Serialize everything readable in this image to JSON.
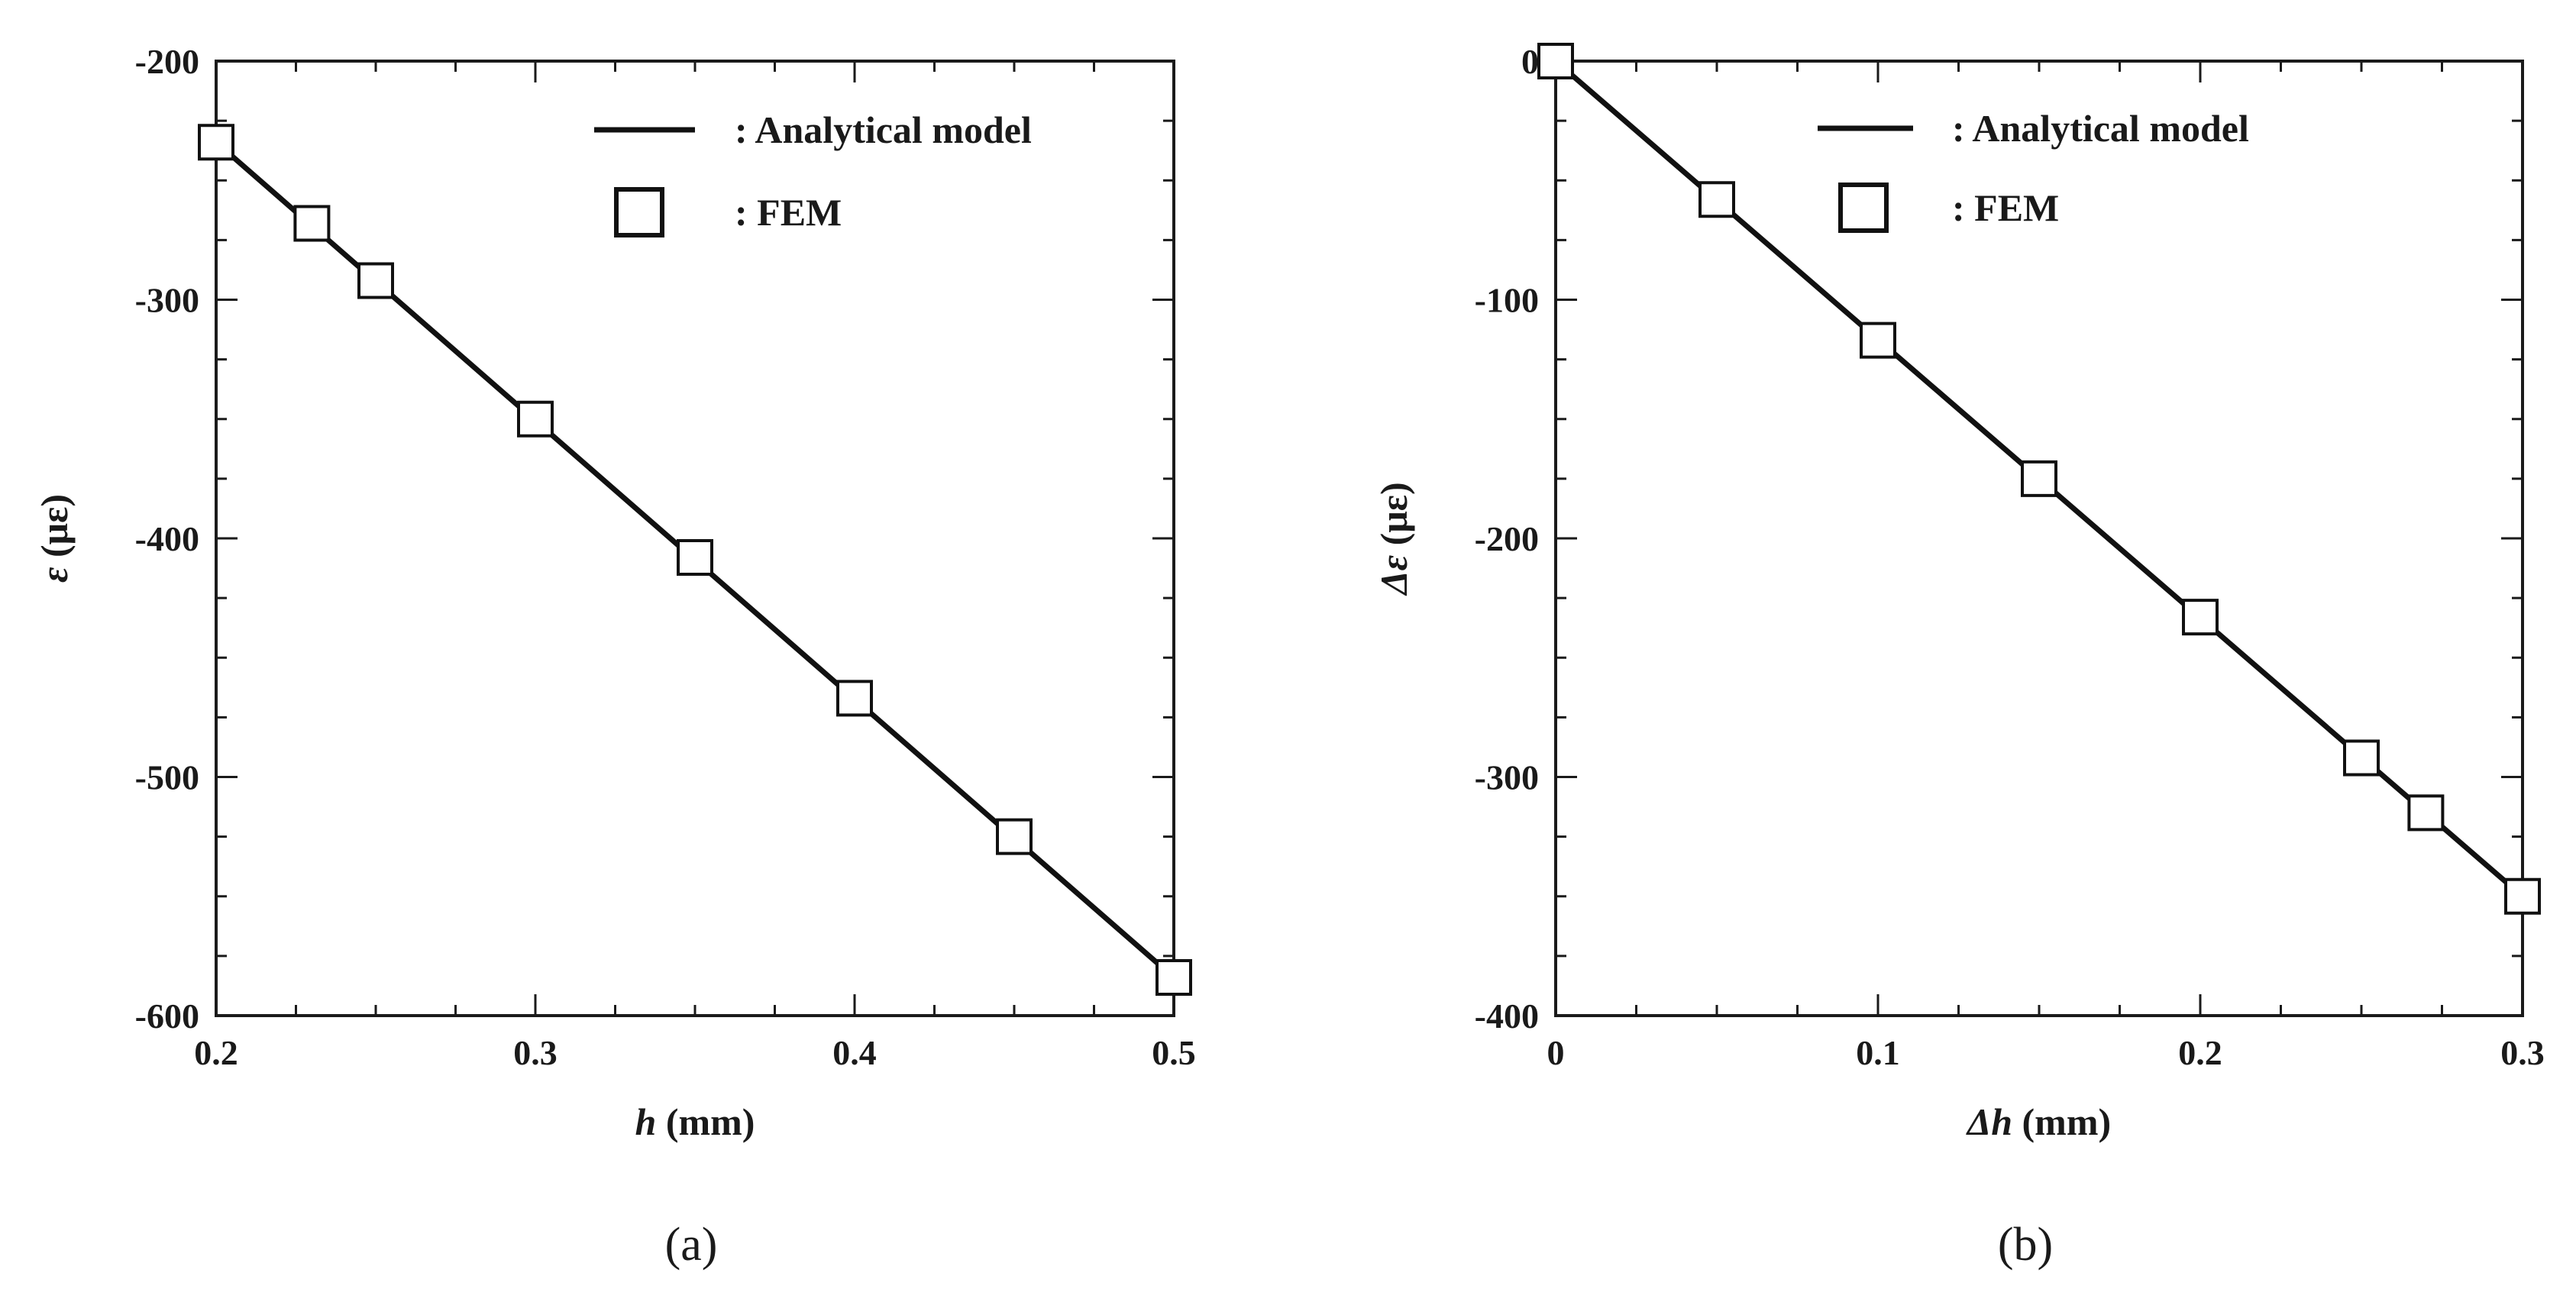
{
  "chart_data": [
    {
      "type": "line",
      "panel_label": "(a)",
      "xlabel_symbol": "h",
      "xlabel_unit": " (mm)",
      "ylabel_symbol": "ε",
      "ylabel_unit": " (με)",
      "xlim": [
        0.2,
        0.5
      ],
      "ylim": [
        -600,
        -200
      ],
      "xticks": [
        0.2,
        0.3,
        0.4,
        0.5
      ],
      "xtick_labels": [
        "0.2",
        "0.3",
        "0.4",
        "0.5"
      ],
      "yticks": [
        -200,
        -300,
        -400,
        -500,
        -600
      ],
      "ytick_labels": [
        "-200",
        "-300",
        "-400",
        "-500",
        "-600"
      ],
      "x_minor_step": 0.025,
      "y_minor_step": 25,
      "legend_position": "top-right",
      "series": [
        {
          "name": ": Analytical model",
          "style": "line",
          "x": [
            0.2,
            0.5
          ],
          "y": [
            -234,
            -584
          ]
        },
        {
          "name": ": FEM",
          "style": "square-markers",
          "x": [
            0.2,
            0.23,
            0.25,
            0.3,
            0.35,
            0.4,
            0.45,
            0.5
          ],
          "y": [
            -234,
            -268,
            -292,
            -350,
            -408,
            -467,
            -525,
            -584
          ]
        }
      ]
    },
    {
      "type": "line",
      "panel_label": "(b)",
      "xlabel_symbol": "Δh",
      "xlabel_unit": " (mm)",
      "ylabel_symbol": "Δε",
      "ylabel_unit": " (με)",
      "xlim": [
        0,
        0.3
      ],
      "ylim": [
        -400,
        0
      ],
      "xticks": [
        0,
        0.1,
        0.2,
        0.3
      ],
      "xtick_labels": [
        "0",
        "0.1",
        "0.2",
        "0.3"
      ],
      "yticks": [
        0,
        -100,
        -200,
        -300,
        -400
      ],
      "ytick_labels": [
        "0",
        "-100",
        "-200",
        "-300",
        "-400"
      ],
      "x_minor_step": 0.025,
      "y_minor_step": 25,
      "legend_position": "top-right",
      "series": [
        {
          "name": ": Analytical model",
          "style": "line",
          "x": [
            0,
            0.3
          ],
          "y": [
            0,
            -350
          ]
        },
        {
          "name": ": FEM",
          "style": "square-markers",
          "x": [
            0,
            0.05,
            0.1,
            0.15,
            0.2,
            0.25,
            0.27,
            0.3
          ],
          "y": [
            0,
            -58,
            -117,
            -175,
            -233,
            -292,
            -315,
            -350
          ]
        }
      ]
    }
  ]
}
